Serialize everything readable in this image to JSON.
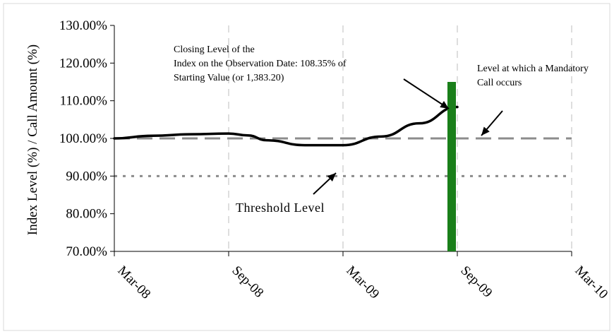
{
  "chart_data": {
    "type": "line",
    "ylabel": "Index Level (%) / Call Amount (%)",
    "xlabel": "",
    "ylim": [
      70,
      130
    ],
    "yticks": [
      "70.00%",
      "80.00%",
      "90.00%",
      "100.00%",
      "110.00%",
      "120.00%",
      "130.00%"
    ],
    "ytick_values": [
      70,
      80,
      90,
      100,
      110,
      120,
      130
    ],
    "xticks": [
      "Mar-08",
      "Sep-08",
      "Mar-09",
      "Sep-09",
      "Mar-10"
    ],
    "xlim": [
      "2008-03",
      "2010-03"
    ],
    "grid": {
      "vertical": true,
      "horizontal": false
    },
    "series": [
      {
        "kind": "line",
        "x": [
          "2008-03",
          "2008-05",
          "2008-07",
          "2008-09",
          "2008-10",
          "2008-11",
          "2009-01",
          "2009-03",
          "2009-05",
          "2009-07",
          "2009-09"
        ],
        "values": [
          100.0,
          100.7,
          101.1,
          101.3,
          100.8,
          99.5,
          98.2,
          98.2,
          100.5,
          104.0,
          108.35
        ]
      },
      {
        "kind": "bar",
        "x": [
          "2009-09"
        ],
        "values": [
          115
        ]
      }
    ],
    "reference_lines": [
      {
        "id": "call",
        "y": 100,
        "style": "dashed"
      },
      {
        "id": "threshold",
        "y": 90,
        "style": "dotted"
      }
    ],
    "annotations": [
      {
        "id": "closing",
        "lines": [
          "Closing Level of the",
          "Index on the Observation Date: 108.35% of",
          "Starting Value (or 1,383.20)"
        ]
      },
      {
        "id": "mandatory",
        "lines": [
          "Level at which a Mandatory",
          "Call occurs"
        ]
      },
      {
        "id": "threshold",
        "lines": [
          "Threshold Level"
        ]
      }
    ],
    "colors": {
      "bar": "#1a7f1a",
      "index_line": "#000000",
      "reference": "#8c8c8c"
    }
  }
}
